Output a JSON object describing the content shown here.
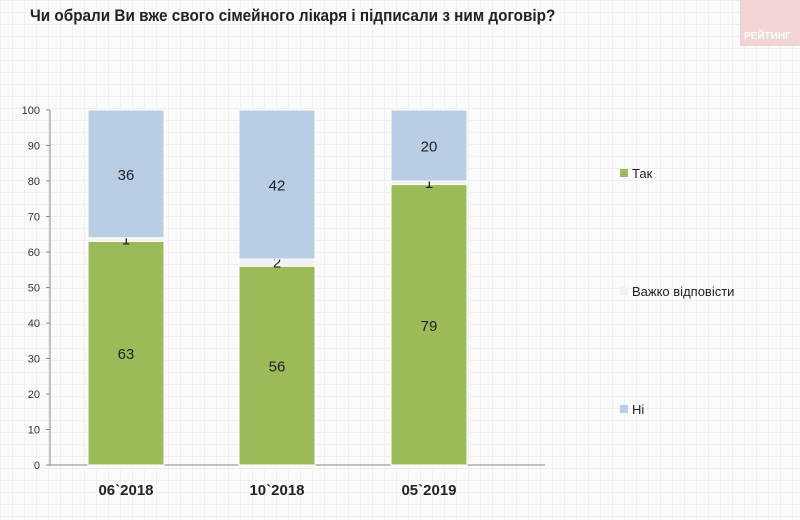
{
  "chart_data": {
    "type": "stacked-bar",
    "title": "Чи обрали Ви вже свого сімейного лікаря і підписали з ним договір?",
    "categories": [
      "06`2018",
      "10`2018",
      "05`2019"
    ],
    "series": [
      {
        "name": "Так",
        "color": "#9bbb59",
        "values": [
          63,
          56,
          79
        ]
      },
      {
        "name": "Важко відповісти",
        "color": "#f2f2f2",
        "values": [
          1,
          2,
          1
        ]
      },
      {
        "name": "Ні",
        "color": "#b9cde5",
        "values": [
          36,
          42,
          20
        ]
      }
    ],
    "ylim": [
      0,
      100
    ],
    "yticks": [
      "0",
      "10",
      "20",
      "30",
      "40",
      "50",
      "60",
      "70",
      "80",
      "90",
      "100"
    ],
    "legend": "right",
    "grid": false
  },
  "logo": {
    "text": "РЕЙТИНГ"
  }
}
